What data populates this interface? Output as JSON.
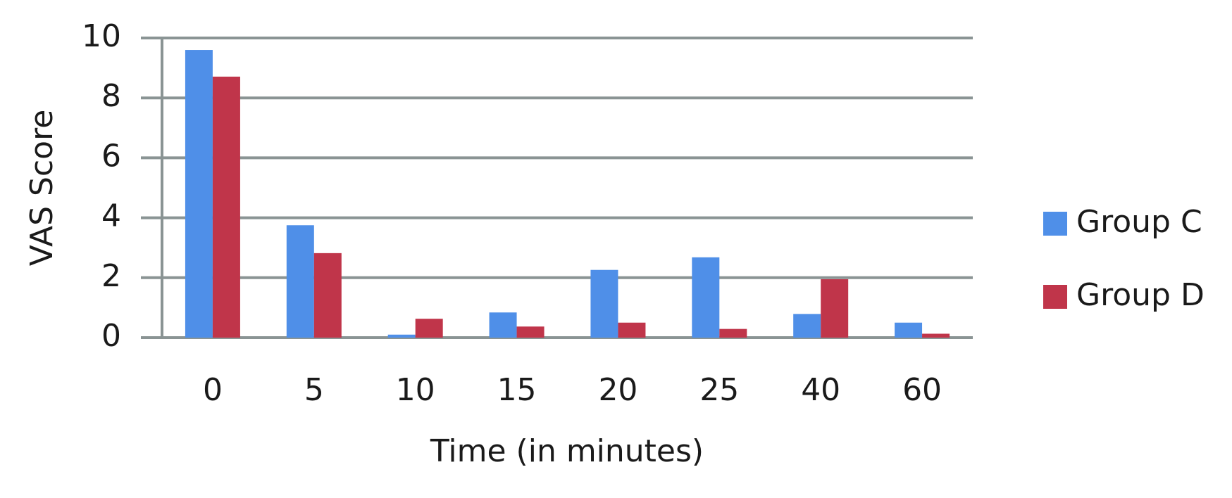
{
  "chart_data": {
    "type": "bar",
    "x_label": "Time (in minutes)",
    "y_label": "VAS Score",
    "categories": [
      "0",
      "5",
      "10",
      "15",
      "20",
      "25",
      "40",
      "60"
    ],
    "series": [
      {
        "name": "Group C",
        "color": "#4f8fe8",
        "values": [
          9.6,
          3.75,
          0.1,
          0.84,
          2.26,
          2.68,
          0.79,
          0.5
        ]
      },
      {
        "name": "Group D",
        "color": "#c0354a",
        "values": [
          8.71,
          2.82,
          0.63,
          0.37,
          0.5,
          0.29,
          1.95,
          0.13
        ]
      }
    ],
    "ylim": [
      0,
      10
    ],
    "yticks": [
      0,
      2,
      4,
      6,
      8,
      10
    ],
    "grid": true,
    "legend": "right"
  }
}
